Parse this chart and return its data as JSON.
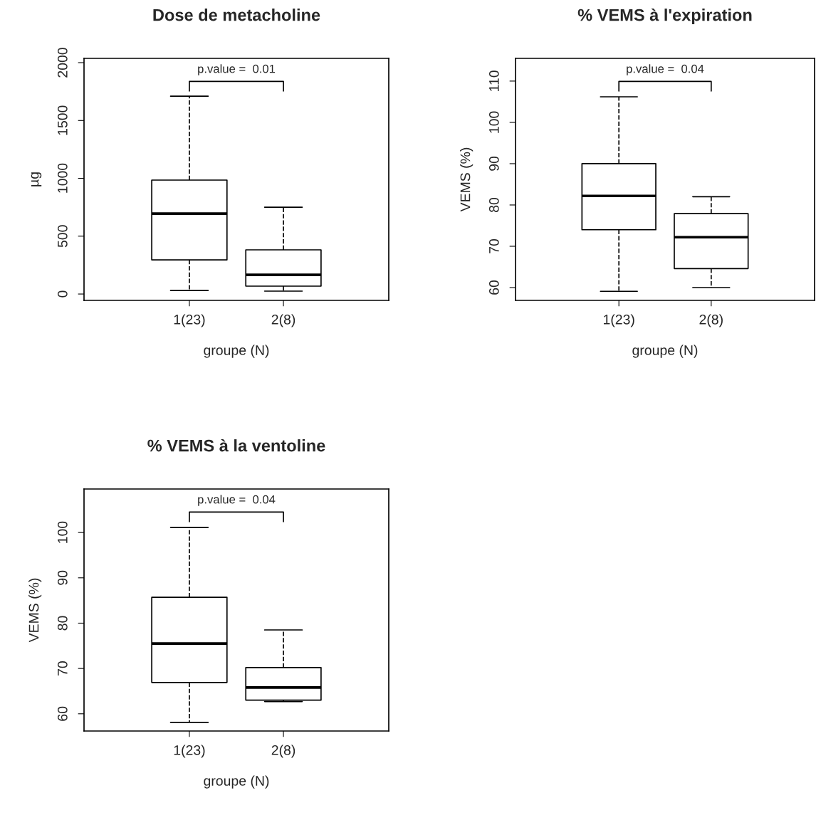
{
  "chart_data": [
    {
      "type": "box",
      "title": "Dose de metacholine",
      "xlabel": "groupe (N)",
      "ylabel": "µg",
      "categories": [
        "1(23)",
        "2(8)"
      ],
      "boxes": [
        {
          "low": 30,
          "q1": 295,
          "median": 695,
          "q3": 985,
          "high": 1710
        },
        {
          "low": 25,
          "q1": 68,
          "median": 166,
          "q3": 382,
          "high": 750
        }
      ],
      "ylim": [
        -55,
        2037
      ],
      "yticks": [
        0,
        500,
        1000,
        1500,
        2000
      ],
      "annotations": [
        "p.value =  0.01"
      ],
      "grid": false
    },
    {
      "type": "box",
      "title": "% VEMS à l'expiration",
      "xlabel": "groupe (N)",
      "ylabel": "VEMS (%)",
      "categories": [
        "1(23)",
        "2(8)"
      ],
      "boxes": [
        {
          "low": 59.1,
          "q1": 74,
          "median": 82.2,
          "q3": 90,
          "high": 106.2
        },
        {
          "low": 60,
          "q1": 64.6,
          "median": 72.2,
          "q3": 77.9,
          "high": 82
        }
      ],
      "ylim": [
        56.9,
        115.5
      ],
      "yticks": [
        60,
        70,
        80,
        90,
        100,
        110
      ],
      "annotations": [
        "p.value =  0.04"
      ],
      "grid": false
    },
    {
      "type": "box",
      "title": "% VEMS à la ventoline",
      "xlabel": "groupe (N)",
      "ylabel": "VEMS (%)",
      "categories": [
        "1(23)",
        "2(8)"
      ],
      "boxes": [
        {
          "low": 58.1,
          "q1": 66.9,
          "median": 75.5,
          "q3": 85.7,
          "high": 101.1
        },
        {
          "low": 62.7,
          "q1": 63,
          "median": 65.8,
          "q3": 70.2,
          "high": 78.5
        }
      ],
      "ylim": [
        56.2,
        109.6
      ],
      "yticks": [
        60,
        70,
        80,
        90,
        100
      ],
      "annotations": [
        "p.value =  0.04"
      ],
      "grid": false
    }
  ]
}
